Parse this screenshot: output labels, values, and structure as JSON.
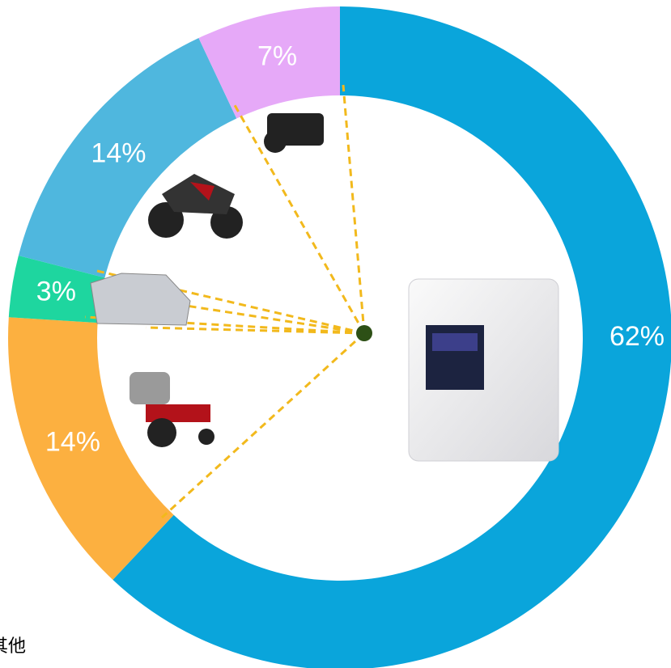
{
  "chart_data": {
    "type": "donut",
    "values": [
      62,
      14,
      3,
      14,
      7
    ],
    "value_labels": [
      "62%",
      "14%",
      "3%",
      "14%",
      "7%"
    ],
    "colors": [
      "#0aa5db",
      "#fcb040",
      "#1ed69f",
      "#4fb7de",
      "#e6a9f8"
    ],
    "annotation": "其他"
  }
}
